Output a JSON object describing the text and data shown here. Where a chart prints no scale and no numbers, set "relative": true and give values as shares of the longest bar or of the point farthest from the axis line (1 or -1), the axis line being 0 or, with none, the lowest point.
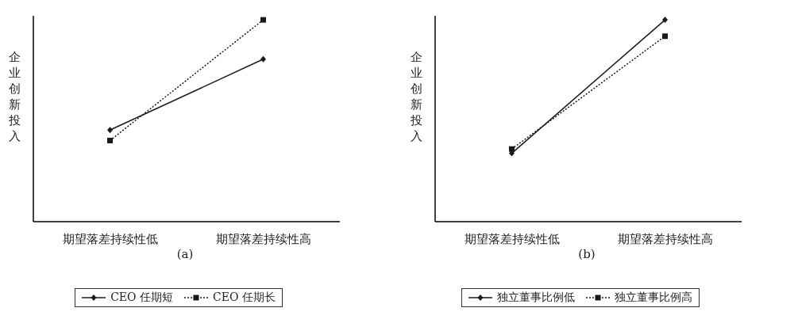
{
  "chart_data": [
    {
      "type": "line",
      "relative": true,
      "ylabel": "企业创新投入",
      "categories": [
        "期望落差持续性低",
        "期望落差持续性高"
      ],
      "legend": "bottom",
      "annotations": [
        "(a)"
      ],
      "series": [
        {
          "name": "CEO 任期短",
          "color": "#1a1a1a",
          "values": [
            0.454,
            0.805
          ],
          "marker": "diamond",
          "line_style": "solid"
        },
        {
          "name": "CEO 任期长",
          "color": "#1a1a1a",
          "values": [
            0.402,
            1
          ],
          "marker": "square",
          "line_style": "dotted"
        }
      ]
    },
    {
      "type": "line",
      "relative": true,
      "ylabel": "企业创新投入",
      "categories": [
        "期望落差持续性低",
        "期望落差持续性高"
      ],
      "legend": "bottom",
      "annotations": [
        "(b)"
      ],
      "series": [
        {
          "name": "独立董事比例低",
          "color": "#1a1a1a",
          "values": [
            0.339,
            1
          ],
          "marker": "diamond",
          "line_style": "solid"
        },
        {
          "name": "独立董事比例高",
          "color": "#1a1a1a",
          "values": [
            0.36,
            0.919
          ],
          "marker": "square",
          "line_style": "dotted"
        }
      ]
    }
  ]
}
